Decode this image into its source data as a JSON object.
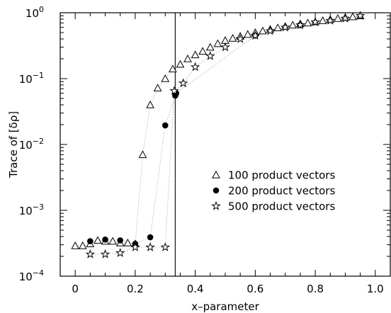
{
  "chart_data": {
    "type": "scatter",
    "title": "",
    "xlabel": "x–parameter",
    "ylabel": "Trace of [δρ]",
    "xlim": [
      -0.05,
      1.05
    ],
    "ylim_log10": [
      -4,
      0
    ],
    "yscale": "log",
    "x_ticks": [
      0,
      0.2,
      0.4,
      0.6,
      0.8,
      1.0
    ],
    "x_tick_labels": [
      "0",
      "0.2",
      "0.4",
      "0.6",
      "0.8",
      "1.0"
    ],
    "y_tick_exponents": [
      -4,
      -3,
      -2,
      -1,
      0
    ],
    "y_tick_base": "10",
    "y_tick_sups": [
      "−4",
      "−3",
      "−2",
      "−1",
      "0"
    ],
    "vertical_line_x": 0.3333,
    "legend_position": "center-right",
    "dotted_connecting_lines": true,
    "series": [
      {
        "name": "100 product vectors",
        "marker": "triangle",
        "points": [
          [
            0.0,
            0.00029
          ],
          [
            0.025,
            0.00029
          ],
          [
            0.05,
            0.00031
          ],
          [
            0.075,
            0.00035
          ],
          [
            0.1,
            0.00034
          ],
          [
            0.125,
            0.00034
          ],
          [
            0.15,
            0.00032
          ],
          [
            0.175,
            0.00032
          ],
          [
            0.2,
            0.00031
          ],
          [
            0.225,
            0.007
          ],
          [
            0.25,
            0.04
          ],
          [
            0.275,
            0.072
          ],
          [
            0.3,
            0.1
          ],
          [
            0.325,
            0.14
          ],
          [
            0.35,
            0.165
          ],
          [
            0.375,
            0.2
          ],
          [
            0.4,
            0.23
          ],
          [
            0.425,
            0.26
          ],
          [
            0.45,
            0.3
          ],
          [
            0.475,
            0.34
          ],
          [
            0.5,
            0.38
          ],
          [
            0.525,
            0.41
          ],
          [
            0.55,
            0.44
          ],
          [
            0.575,
            0.47
          ],
          [
            0.6,
            0.5
          ],
          [
            0.625,
            0.53
          ],
          [
            0.65,
            0.56
          ],
          [
            0.675,
            0.59
          ],
          [
            0.7,
            0.62
          ],
          [
            0.725,
            0.65
          ],
          [
            0.75,
            0.68
          ],
          [
            0.775,
            0.7
          ],
          [
            0.8,
            0.73
          ],
          [
            0.825,
            0.76
          ],
          [
            0.85,
            0.79
          ],
          [
            0.875,
            0.82
          ],
          [
            0.9,
            0.85
          ],
          [
            0.925,
            0.87
          ],
          [
            0.95,
            0.9
          ]
        ]
      },
      {
        "name": "200 product vectors",
        "marker": "filled-circle",
        "points": [
          [
            0.05,
            0.00034
          ],
          [
            0.1,
            0.00036
          ],
          [
            0.15,
            0.00035
          ],
          [
            0.2,
            0.00031
          ],
          [
            0.25,
            0.00039
          ],
          [
            0.3,
            0.0195
          ],
          [
            0.3333,
            0.055
          ],
          [
            0.3367,
            0.06
          ],
          [
            0.6,
            0.45
          ],
          [
            0.75,
            0.65
          ]
        ]
      },
      {
        "name": "500 product vectors",
        "marker": "star",
        "points": [
          [
            0.05,
            0.000215
          ],
          [
            0.1,
            0.000215
          ],
          [
            0.15,
            0.000225
          ],
          [
            0.2,
            0.000275
          ],
          [
            0.25,
            0.000275
          ],
          [
            0.3,
            0.000275
          ],
          [
            0.33,
            0.065
          ],
          [
            0.36,
            0.085
          ],
          [
            0.4,
            0.15
          ],
          [
            0.45,
            0.22
          ],
          [
            0.5,
            0.3
          ],
          [
            0.55,
            0.4
          ],
          [
            0.6,
            0.45
          ],
          [
            0.65,
            0.53
          ],
          [
            0.7,
            0.6
          ],
          [
            0.75,
            0.65
          ],
          [
            0.8,
            0.72
          ],
          [
            0.85,
            0.76
          ],
          [
            0.9,
            0.82
          ],
          [
            0.95,
            0.9
          ]
        ]
      }
    ]
  }
}
